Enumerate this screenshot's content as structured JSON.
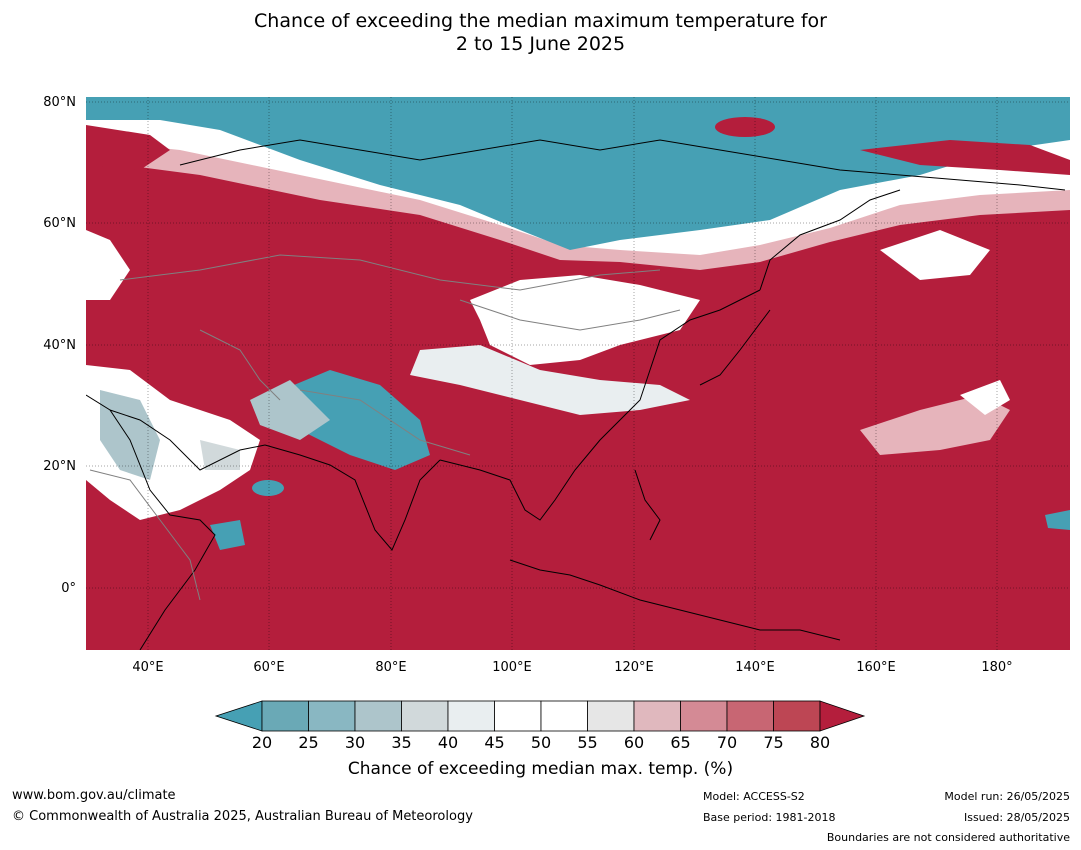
{
  "title": {
    "line1": "Chance of exceeding the median maximum temperature for",
    "line2": "2 to 15 June 2025"
  },
  "map": {
    "lat_labels": [
      "80°N",
      "60°N",
      "40°N",
      "20°N",
      "0°"
    ],
    "lon_labels": [
      "40°E",
      "60°E",
      "80°E",
      "100°E",
      "120°E",
      "140°E",
      "160°E",
      "180°"
    ],
    "colors": {
      "low": "#46a0b4",
      "mid_low": "#b9d2d6",
      "neutral": "#ffffff",
      "high_light": "#e6b4bb",
      "high": "#b41e3c",
      "coast": "#000000",
      "border": "#808080"
    }
  },
  "colorbar": {
    "ticks": [
      "20",
      "25",
      "30",
      "35",
      "40",
      "45",
      "50",
      "55",
      "60",
      "65",
      "70",
      "75",
      "80"
    ],
    "colors": [
      "#46a0b4",
      "#6aa9b6",
      "#89b7c2",
      "#adc5cb",
      "#d1d9db",
      "#e9eef0",
      "#ffffff",
      "#ffffff",
      "#e6e6e6",
      "#e0b8be",
      "#d48a95",
      "#c86673",
      "#bd4654",
      "#b41e3c"
    ],
    "label": "Chance of exceeding median max. temp. (%)"
  },
  "footer": {
    "website": "www.bom.gov.au/climate",
    "copyright": "© Commonwealth of Australia 2025, Australian Bureau of Meteorology",
    "model": "Model: ACCESS-S2",
    "base_period": "Base period: 1981-2018",
    "model_run": "Model run: 26/05/2025",
    "issued": "Issued: 28/05/2025",
    "disclaimer": "Boundaries are not considered authoritative"
  }
}
